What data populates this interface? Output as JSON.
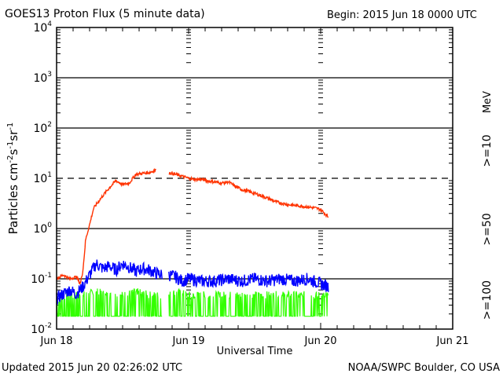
{
  "chart_data": {
    "type": "line",
    "title": "GOES13 Proton Flux (5 minute data)",
    "begin_label": "Begin: 2015 Jun 18 0000 UTC",
    "xlabel": "Universal Time",
    "ylabel": "Particles cm",
    "ylabel_parts": [
      "Particles cm",
      "-2",
      "s",
      "-1",
      "sr",
      "-1"
    ],
    "yscale": "log",
    "ylim": [
      0.01,
      10000
    ],
    "y_ticks": [
      {
        "value": 10000,
        "base": "10",
        "exp": "4"
      },
      {
        "value": 1000,
        "base": "10",
        "exp": "3"
      },
      {
        "value": 100,
        "base": "10",
        "exp": "2"
      },
      {
        "value": 10,
        "base": "10",
        "exp": "1"
      },
      {
        "value": 1,
        "base": "10",
        "exp": "0"
      },
      {
        "value": 0.1,
        "base": "10",
        "exp": "-1"
      },
      {
        "value": 0.01,
        "base": "10",
        "exp": "-2"
      }
    ],
    "x_unit": "days since 2015 Jun 18 0000 UTC",
    "xlim": [
      0,
      3
    ],
    "x_ticks": [
      {
        "value": 0,
        "label": "Jun 18"
      },
      {
        "value": 1,
        "label": "Jun 19"
      },
      {
        "value": 2,
        "label": "Jun 20"
      },
      {
        "value": 3,
        "label": "Jun 21"
      }
    ],
    "threshold_line": {
      "value": 10,
      "style": "dashed"
    },
    "solid_gridlines": [
      1000,
      100,
      1,
      0.1
    ],
    "energy_unit": "MeV",
    "series": [
      {
        "name": ">=10",
        "color": "#ff3300",
        "x": [
          0.0,
          0.05,
          0.1,
          0.15,
          0.18,
          0.2,
          0.22,
          0.25,
          0.28,
          0.3,
          0.35,
          0.4,
          0.45,
          0.5,
          0.55,
          0.6,
          0.65,
          0.7,
          0.75,
          null,
          0.85,
          0.9,
          0.95,
          1.0,
          1.05,
          1.1,
          1.15,
          1.2,
          1.25,
          1.3,
          1.35,
          1.4,
          1.45,
          1.5,
          1.55,
          1.6,
          1.65,
          1.7,
          1.75,
          1.8,
          1.85,
          1.9,
          1.95,
          2.0,
          2.03,
          2.06
        ],
        "y": [
          0.1,
          0.12,
          0.1,
          0.11,
          0.08,
          0.15,
          0.6,
          1.2,
          2.5,
          3.0,
          4.5,
          6.5,
          9.0,
          7.5,
          8.0,
          12.0,
          12.5,
          13.0,
          14.5,
          null,
          13.0,
          12.0,
          11.0,
          10.0,
          9.5,
          9.5,
          8.8,
          8.5,
          8.0,
          8.5,
          7.0,
          6.0,
          5.5,
          5.0,
          4.5,
          4.0,
          3.5,
          3.2,
          3.0,
          2.9,
          2.8,
          2.7,
          2.6,
          2.4,
          2.0,
          1.7
        ]
      },
      {
        "name": ">=50",
        "color": "#0000ff",
        "x": [
          0.0,
          0.05,
          0.1,
          0.15,
          0.2,
          0.25,
          0.3,
          0.35,
          0.4,
          0.45,
          0.5,
          0.55,
          0.6,
          0.65,
          0.7,
          0.75,
          0.8,
          null,
          0.85,
          0.9,
          0.95,
          1.0,
          1.1,
          1.2,
          1.3,
          1.4,
          1.5,
          1.6,
          1.7,
          1.8,
          1.9,
          2.0,
          2.06
        ],
        "y": [
          0.04,
          0.05,
          0.06,
          0.05,
          0.07,
          0.12,
          0.2,
          0.16,
          0.18,
          0.15,
          0.2,
          0.17,
          0.14,
          0.16,
          0.15,
          0.13,
          0.12,
          null,
          0.12,
          0.11,
          0.09,
          0.1,
          0.09,
          0.09,
          0.1,
          0.09,
          0.1,
          0.09,
          0.1,
          0.09,
          0.1,
          0.08,
          0.07
        ]
      },
      {
        "name": ">=100",
        "color": "#33ff00",
        "x": [
          0.0,
          0.1,
          0.2,
          0.3,
          0.4,
          0.5,
          0.6,
          0.7,
          0.8,
          null,
          0.85,
          0.9,
          1.0,
          1.1,
          1.2,
          1.3,
          1.4,
          1.5,
          1.6,
          1.7,
          1.8,
          1.9,
          2.0,
          2.06
        ],
        "y": [
          0.025,
          0.03,
          0.03,
          0.035,
          0.03,
          0.03,
          0.035,
          0.03,
          0.03,
          null,
          0.03,
          0.035,
          0.03,
          0.03,
          0.03,
          0.03,
          0.03,
          0.03,
          0.03,
          0.03,
          0.03,
          0.03,
          0.03,
          0.03
        ],
        "floor": 0.018
      }
    ]
  },
  "footer": {
    "updated": "Updated 2015 Jun 20 02:26:02 UTC",
    "source": "NOAA/SWPC Boulder, CO USA"
  }
}
